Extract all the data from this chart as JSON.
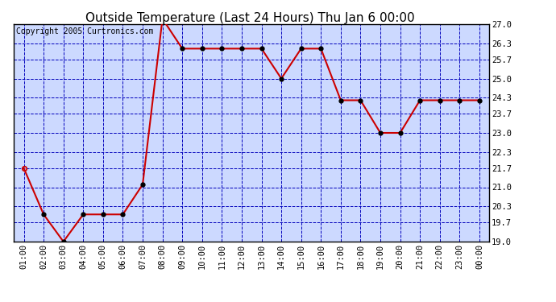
{
  "title": "Outside Temperature (Last 24 Hours) Thu Jan 6 00:00",
  "copyright": "Copyright 2005 Curtronics.com",
  "x_labels": [
    "01:00",
    "02:00",
    "03:00",
    "04:00",
    "05:00",
    "06:00",
    "07:00",
    "08:00",
    "09:00",
    "10:00",
    "11:00",
    "12:00",
    "13:00",
    "14:00",
    "15:00",
    "16:00",
    "17:00",
    "18:00",
    "19:00",
    "20:00",
    "21:00",
    "22:00",
    "23:00",
    "00:00"
  ],
  "y_values": [
    21.7,
    20.0,
    19.0,
    20.0,
    20.0,
    20.0,
    21.1,
    27.2,
    26.1,
    26.1,
    26.1,
    26.1,
    26.1,
    25.0,
    26.1,
    26.1,
    24.2,
    24.2,
    23.0,
    23.0,
    24.2,
    24.2,
    24.2,
    24.2
  ],
  "ylim_min": 19.0,
  "ylim_max": 27.0,
  "yticks": [
    19.0,
    19.7,
    20.3,
    21.0,
    21.7,
    22.3,
    23.0,
    23.7,
    24.3,
    25.0,
    25.7,
    26.3,
    27.0
  ],
  "line_color": "#cc0000",
  "marker_color": "#000000",
  "bg_color": "#ccd9ff",
  "title_fontsize": 11,
  "copyright_fontsize": 7,
  "grid_color": "#0000bb",
  "border_color": "#000000",
  "tick_fontsize": 7.5
}
